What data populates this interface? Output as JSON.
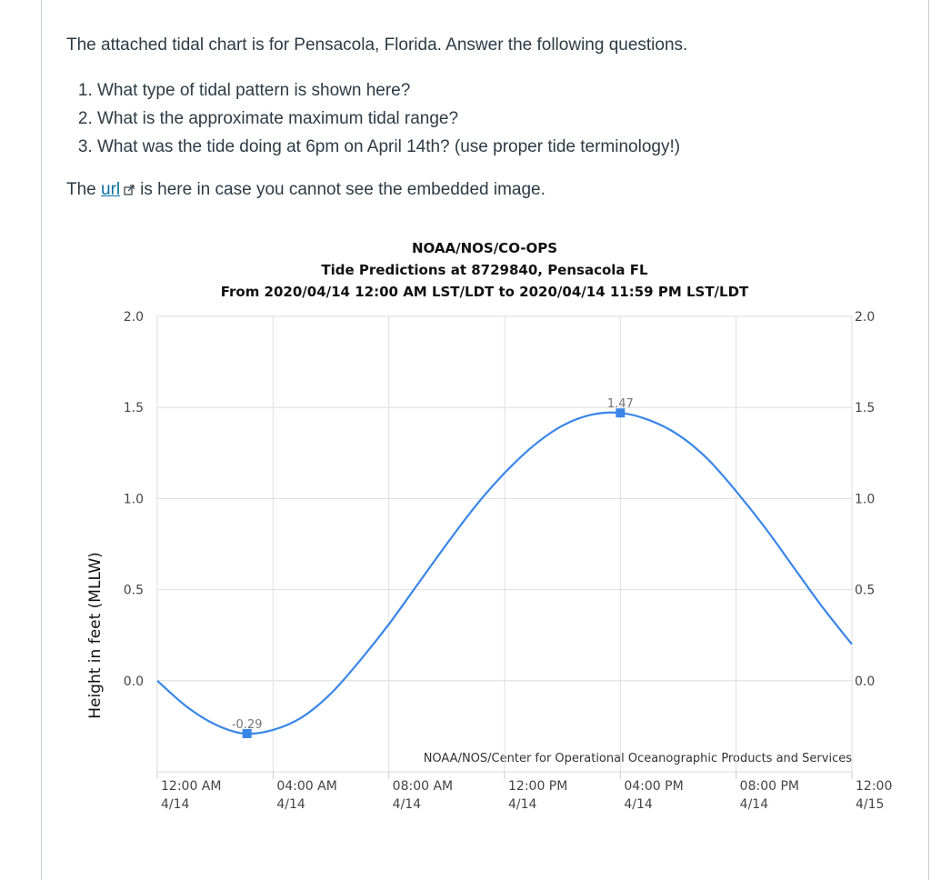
{
  "question": {
    "intro": "The attached tidal chart is for Pensacola, Florida. Answer the following questions.",
    "items": [
      "What type of tidal pattern is shown here?",
      "What is the approximate maximum tidal range?",
      "What was the tide doing at 6pm on April 14th? (use proper tide terminology!)"
    ],
    "url_prefix": "The ",
    "url_link_text": "url",
    "url_suffix": "is here in case you cannot see the embedded image.",
    "link_icon": "external-link-icon"
  },
  "chart_data": {
    "type": "line",
    "title_lines": [
      "NOAA/NOS/CO-OPS",
      "Tide Predictions at 8729840, Pensacola FL",
      "From 2020/04/14 12:00 AM LST/LDT to 2020/04/14 11:59 PM LST/LDT"
    ],
    "ylabel": "Height in feet (MLLW)",
    "ylim": [
      -0.5,
      2.0
    ],
    "y_ticks": [
      2.0,
      1.5,
      1.0,
      0.5,
      0.0
    ],
    "y_tick_labels": [
      "2.0",
      "1.5",
      "1.0",
      "0.5",
      "0.0"
    ],
    "xlim_hours": [
      0,
      24
    ],
    "x_ticks": [
      {
        "hour": 0,
        "time": "12:00 AM",
        "date": "4/14"
      },
      {
        "hour": 4,
        "time": "04:00 AM",
        "date": "4/14"
      },
      {
        "hour": 8,
        "time": "08:00 AM",
        "date": "4/14"
      },
      {
        "hour": 12,
        "time": "12:00 PM",
        "date": "4/14"
      },
      {
        "hour": 16,
        "time": "04:00 PM",
        "date": "4/14"
      },
      {
        "hour": 20,
        "time": "08:00 PM",
        "date": "4/14"
      },
      {
        "hour": 24,
        "time": "12:00",
        "date": "4/15"
      }
    ],
    "series_color": "#3a86e8",
    "extrema": [
      {
        "hour": 3.1,
        "value": -0.29,
        "label": "-0.29"
      },
      {
        "hour": 16.0,
        "value": 1.47,
        "label": "1.47"
      }
    ],
    "series": [
      {
        "x_hours": [
          0,
          1,
          2,
          3,
          4,
          5,
          6,
          7,
          8,
          9,
          10,
          11,
          12,
          13,
          14,
          15,
          16,
          17,
          18,
          19,
          20,
          21,
          22,
          23,
          24
        ],
        "values": [
          0.0,
          -0.14,
          -0.24,
          -0.29,
          -0.27,
          -0.2,
          -0.07,
          0.11,
          0.31,
          0.53,
          0.75,
          0.96,
          1.14,
          1.29,
          1.4,
          1.46,
          1.47,
          1.43,
          1.35,
          1.22,
          1.04,
          0.84,
          0.62,
          0.4,
          0.2
        ]
      }
    ],
    "credit": "NOAA/NOS/Center for Operational Oceanographic Products and Services",
    "grid": true
  }
}
